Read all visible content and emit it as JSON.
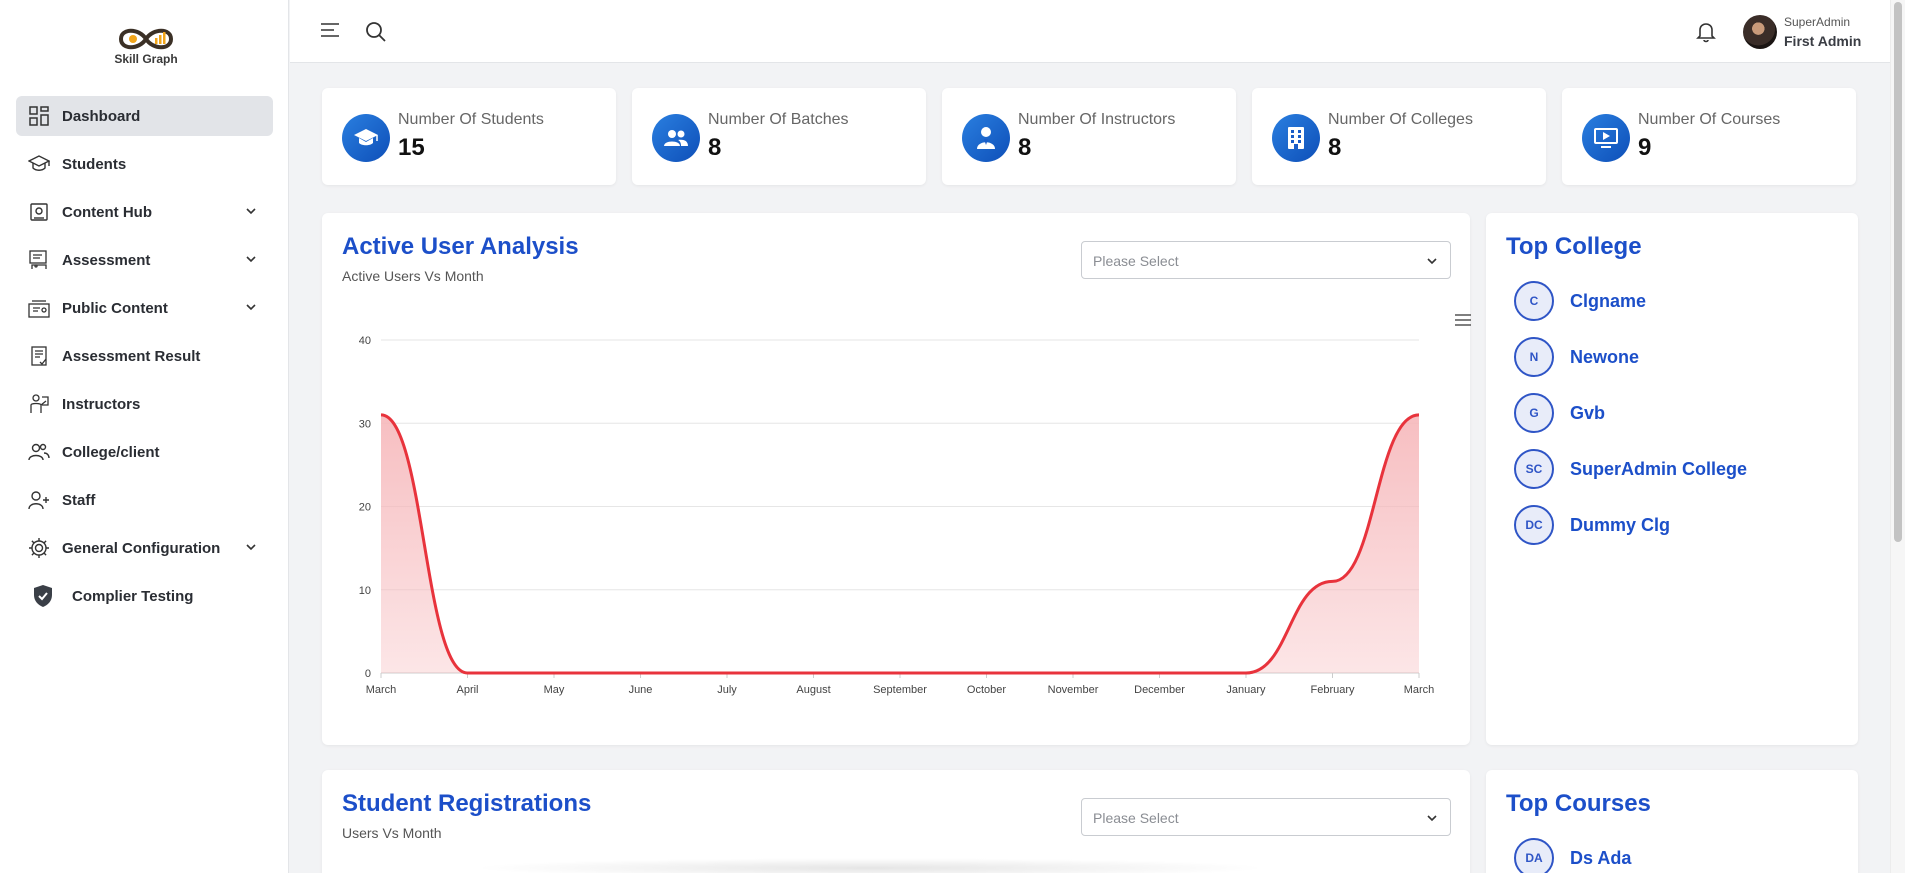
{
  "app": {
    "logo_text": "Skill Graph"
  },
  "sidebar": {
    "items": [
      {
        "label": "Dashboard",
        "icon": "dashboard-grid-icon",
        "active": true
      },
      {
        "label": "Students",
        "icon": "graduation-cap-icon"
      },
      {
        "label": "Content Hub",
        "icon": "content-hub-icon",
        "expandable": true
      },
      {
        "label": "Assessment",
        "icon": "assessment-icon",
        "expandable": true
      },
      {
        "label": "Public Content",
        "icon": "public-content-icon",
        "expandable": true
      },
      {
        "label": "Assessment Result",
        "icon": "assessment-result-icon"
      },
      {
        "label": "Instructors",
        "icon": "instructor-icon"
      },
      {
        "label": "College/client",
        "icon": "users-icon"
      },
      {
        "label": "Staff",
        "icon": "user-add-icon"
      },
      {
        "label": "General Configuration",
        "icon": "gear-icon",
        "expandable": true
      },
      {
        "label": "Complier Testing",
        "icon": "shield-check-icon"
      }
    ]
  },
  "topbar": {
    "role": "SuperAdmin",
    "user_name": "First Admin"
  },
  "stats": [
    {
      "label": "Number Of Students",
      "value": "15",
      "icon": "graduation-cap-icon"
    },
    {
      "label": "Number Of Batches",
      "value": "8",
      "icon": "users-group-icon"
    },
    {
      "label": "Number Of Instructors",
      "value": "8",
      "icon": "instructor-icon"
    },
    {
      "label": "Number Of Colleges",
      "value": "8",
      "icon": "building-icon"
    },
    {
      "label": "Number Of Courses",
      "value": "9",
      "icon": "monitor-play-icon"
    }
  ],
  "active_users": {
    "title": "Active User Analysis",
    "subtitle": "Active Users Vs Month",
    "select_placeholder": "Please Select"
  },
  "chart_data": {
    "type": "area",
    "title": "",
    "xlabel": "",
    "ylabel": "",
    "ylim": [
      0,
      40
    ],
    "yticks": [
      0,
      10,
      20,
      30,
      40
    ],
    "categories": [
      "March",
      "April",
      "May",
      "June",
      "July",
      "August",
      "September",
      "October",
      "November",
      "December",
      "January",
      "February",
      "March"
    ],
    "series": [
      {
        "values": [
          31,
          0,
          0,
          0,
          0,
          0,
          0,
          0,
          0,
          0,
          0,
          11,
          31
        ]
      }
    ],
    "grid": true,
    "colors": {
      "line": "#e8333c",
      "fill": "#f6b7ba"
    }
  },
  "top_college": {
    "title": "Top College",
    "items": [
      {
        "initials": "C",
        "name": "Clgname"
      },
      {
        "initials": "N",
        "name": "Newone"
      },
      {
        "initials": "G",
        "name": "Gvb"
      },
      {
        "initials": "SC",
        "name": "SuperAdmin College"
      },
      {
        "initials": "DC",
        "name": "Dummy Clg"
      }
    ]
  },
  "registrations": {
    "title": "Student Registrations",
    "subtitle": "Users Vs Month",
    "select_placeholder": "Please Select"
  },
  "top_courses": {
    "title": "Top Courses",
    "items": [
      {
        "initials": "DA",
        "name": "Ds Ada"
      }
    ]
  }
}
